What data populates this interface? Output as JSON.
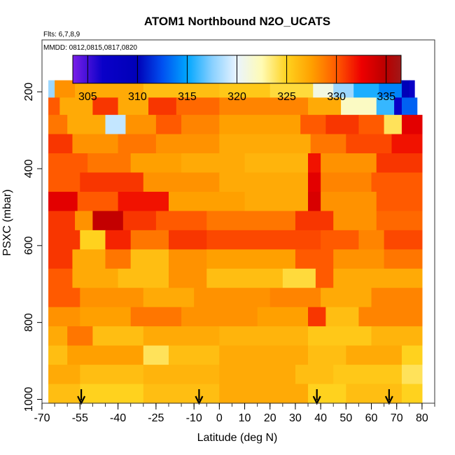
{
  "chart_data": {
    "type": "heatmap",
    "title": "ATOM1 Northbound N2O_UCATS",
    "subtitle_lines": [
      "Flts: 6,7,8,9",
      "MMDD: 0812,0815,0817,0820"
    ],
    "xlabel": "Latitude (deg N)",
    "ylabel": "PSXC (mbar)",
    "xlim": [
      -70,
      85
    ],
    "ylim": [
      1010,
      65
    ],
    "y_reversed": true,
    "x_major_ticks": [
      -70,
      -55,
      -40,
      -25,
      -10,
      0,
      10,
      20,
      30,
      40,
      50,
      60,
      70,
      80
    ],
    "x_tick_labels": [
      "-70",
      "-55",
      "-40",
      "-25",
      "-10",
      "0",
      "10",
      "20",
      "30",
      "40",
      "50",
      "60",
      "70",
      "80"
    ],
    "x_minor_step": 5,
    "y_ticks": [
      200,
      400,
      600,
      800,
      1000
    ],
    "y_tick_labels": [
      "200",
      "400",
      "600",
      "800",
      "1000"
    ],
    "colorbar": {
      "min": 303.5,
      "max": 336.5,
      "tick_values": [
        305,
        310,
        315,
        320,
        325,
        330,
        335
      ],
      "tick_labels": [
        "305",
        "310",
        "315",
        "320",
        "325",
        "330",
        "335"
      ],
      "gradient_stops": [
        {
          "value": 303.5,
          "color": "#7a1fe8"
        },
        {
          "value": 306.5,
          "color": "#0a00c8"
        },
        {
          "value": 310,
          "color": "#0000b8"
        },
        {
          "value": 312.5,
          "color": "#0050f0"
        },
        {
          "value": 315,
          "color": "#00a6ff"
        },
        {
          "value": 317.5,
          "color": "#88d0ff"
        },
        {
          "value": 320,
          "color": "#eaf4ff"
        },
        {
          "value": 322.5,
          "color": "#fffbb4"
        },
        {
          "value": 325,
          "color": "#ffd21e"
        },
        {
          "value": 327.5,
          "color": "#ffa000"
        },
        {
          "value": 330,
          "color": "#ff5a00"
        },
        {
          "value": 332.5,
          "color": "#ee0000"
        },
        {
          "value": 335,
          "color": "#b80000"
        },
        {
          "value": 336.5,
          "color": "#a01818"
        }
      ]
    },
    "curtain": {
      "lat_start": -67.5,
      "lat_end": 80,
      "p_top": 170,
      "p_bottom": 1010
    },
    "layers": [
      {
        "p_top": 170,
        "p_bottom": 215,
        "segments": [
          {
            "lat_to": -65,
            "value": 318
          },
          {
            "lat_to": -57,
            "value": 328
          },
          {
            "lat_to": -30,
            "value": 327
          },
          {
            "lat_to": 0,
            "value": 326
          },
          {
            "lat_to": 20,
            "value": 325.5
          },
          {
            "lat_to": 37,
            "value": 324.5
          },
          {
            "lat_to": 45,
            "value": 321
          },
          {
            "lat_to": 53,
            "value": 318
          },
          {
            "lat_to": 63,
            "value": 315.5
          },
          {
            "lat_to": 72,
            "value": 314
          },
          {
            "lat_to": 75,
            "value": 310
          },
          {
            "lat_to": 77,
            "value": 307
          }
        ]
      },
      {
        "p_top": 215,
        "p_bottom": 260,
        "segments": [
          {
            "lat_to": -63,
            "value": 330
          },
          {
            "lat_to": -50,
            "value": 327
          },
          {
            "lat_to": -40,
            "value": 331
          },
          {
            "lat_to": -28,
            "value": 327
          },
          {
            "lat_to": -17,
            "value": 331
          },
          {
            "lat_to": 0,
            "value": 329.5
          },
          {
            "lat_to": 35,
            "value": 328.5
          },
          {
            "lat_to": 48,
            "value": 327
          },
          {
            "lat_to": 62,
            "value": 322
          },
          {
            "lat_to": 69,
            "value": 316
          },
          {
            "lat_to": 72,
            "value": 307
          },
          {
            "lat_to": 78,
            "value": 313
          }
        ]
      },
      {
        "p_top": 260,
        "p_bottom": 310,
        "segments": [
          {
            "lat_to": -60,
            "value": 329
          },
          {
            "lat_to": -45,
            "value": 327
          },
          {
            "lat_to": -37,
            "value": 319
          },
          {
            "lat_to": -25,
            "value": 328
          },
          {
            "lat_to": -15,
            "value": 330
          },
          {
            "lat_to": 0,
            "value": 328.5
          },
          {
            "lat_to": 32,
            "value": 327.5
          },
          {
            "lat_to": 42,
            "value": 330
          },
          {
            "lat_to": 55,
            "value": 331
          },
          {
            "lat_to": 65,
            "value": 330
          },
          {
            "lat_to": 72,
            "value": 324
          },
          {
            "lat_to": 80,
            "value": 333
          }
        ]
      },
      {
        "p_top": 310,
        "p_bottom": 360,
        "segments": [
          {
            "lat_to": -58,
            "value": 331
          },
          {
            "lat_to": -40,
            "value": 328
          },
          {
            "lat_to": -25,
            "value": 329
          },
          {
            "lat_to": 0,
            "value": 328
          },
          {
            "lat_to": 36,
            "value": 327
          },
          {
            "lat_to": 50,
            "value": 329
          },
          {
            "lat_to": 68,
            "value": 330.5
          },
          {
            "lat_to": 80,
            "value": 332
          }
        ]
      },
      {
        "p_top": 360,
        "p_bottom": 410,
        "segments": [
          {
            "lat_to": -52,
            "value": 330
          },
          {
            "lat_to": -35,
            "value": 329
          },
          {
            "lat_to": -15,
            "value": 327.5
          },
          {
            "lat_to": 10,
            "value": 327
          },
          {
            "lat_to": 35,
            "value": 326.5
          },
          {
            "lat_to": 40,
            "value": 332
          },
          {
            "lat_to": 62,
            "value": 328
          },
          {
            "lat_to": 80,
            "value": 331
          }
        ]
      },
      {
        "p_top": 410,
        "p_bottom": 460,
        "segments": [
          {
            "lat_to": -55,
            "value": 330
          },
          {
            "lat_to": -30,
            "value": 331
          },
          {
            "lat_to": 0,
            "value": 328
          },
          {
            "lat_to": 35,
            "value": 327
          },
          {
            "lat_to": 40,
            "value": 333
          },
          {
            "lat_to": 60,
            "value": 328.5
          },
          {
            "lat_to": 80,
            "value": 330
          }
        ]
      },
      {
        "p_top": 460,
        "p_bottom": 510,
        "segments": [
          {
            "lat_to": -56,
            "value": 333
          },
          {
            "lat_to": -40,
            "value": 330
          },
          {
            "lat_to": -20,
            "value": 332
          },
          {
            "lat_to": 10,
            "value": 327.5
          },
          {
            "lat_to": 35,
            "value": 327
          },
          {
            "lat_to": 40,
            "value": 333.5
          },
          {
            "lat_to": 62,
            "value": 328
          },
          {
            "lat_to": 80,
            "value": 330
          }
        ]
      },
      {
        "p_top": 510,
        "p_bottom": 560,
        "segments": [
          {
            "lat_to": -57,
            "value": 331
          },
          {
            "lat_to": -50,
            "value": 328
          },
          {
            "lat_to": -38,
            "value": 334.5
          },
          {
            "lat_to": -25,
            "value": 331
          },
          {
            "lat_to": -5,
            "value": 330
          },
          {
            "lat_to": 30,
            "value": 329
          },
          {
            "lat_to": 45,
            "value": 331
          },
          {
            "lat_to": 62,
            "value": 328
          },
          {
            "lat_to": 80,
            "value": 329.5
          }
        ]
      },
      {
        "p_top": 560,
        "p_bottom": 610,
        "segments": [
          {
            "lat_to": -55,
            "value": 331
          },
          {
            "lat_to": -45,
            "value": 325
          },
          {
            "lat_to": -35,
            "value": 331.5
          },
          {
            "lat_to": -20,
            "value": 329
          },
          {
            "lat_to": -5,
            "value": 331
          },
          {
            "lat_to": 40,
            "value": 330.5
          },
          {
            "lat_to": 55,
            "value": 330
          },
          {
            "lat_to": 65,
            "value": 328.5
          },
          {
            "lat_to": 80,
            "value": 330.5
          }
        ]
      },
      {
        "p_top": 610,
        "p_bottom": 660,
        "segments": [
          {
            "lat_to": -58,
            "value": 331
          },
          {
            "lat_to": -45,
            "value": 327
          },
          {
            "lat_to": -35,
            "value": 329
          },
          {
            "lat_to": -20,
            "value": 326
          },
          {
            "lat_to": -5,
            "value": 328
          },
          {
            "lat_to": 30,
            "value": 327.5
          },
          {
            "lat_to": 45,
            "value": 330
          },
          {
            "lat_to": 65,
            "value": 328
          },
          {
            "lat_to": 80,
            "value": 329
          }
        ]
      },
      {
        "p_top": 660,
        "p_bottom": 710,
        "segments": [
          {
            "lat_to": -58,
            "value": 330
          },
          {
            "lat_to": -40,
            "value": 327
          },
          {
            "lat_to": -20,
            "value": 326
          },
          {
            "lat_to": -5,
            "value": 328
          },
          {
            "lat_to": 25,
            "value": 326
          },
          {
            "lat_to": 38,
            "value": 324.5
          },
          {
            "lat_to": 45,
            "value": 330
          },
          {
            "lat_to": 80,
            "value": 327
          }
        ]
      },
      {
        "p_top": 710,
        "p_bottom": 760,
        "segments": [
          {
            "lat_to": -55,
            "value": 330
          },
          {
            "lat_to": -30,
            "value": 328
          },
          {
            "lat_to": -10,
            "value": 327
          },
          {
            "lat_to": 20,
            "value": 328
          },
          {
            "lat_to": 40,
            "value": 328.5
          },
          {
            "lat_to": 60,
            "value": 327
          },
          {
            "lat_to": 80,
            "value": 328.5
          }
        ]
      },
      {
        "p_top": 760,
        "p_bottom": 810,
        "segments": [
          {
            "lat_to": -55,
            "value": 328
          },
          {
            "lat_to": -35,
            "value": 327.5
          },
          {
            "lat_to": -15,
            "value": 329
          },
          {
            "lat_to": 15,
            "value": 328
          },
          {
            "lat_to": 35,
            "value": 327.5
          },
          {
            "lat_to": 42,
            "value": 331
          },
          {
            "lat_to": 55,
            "value": 326
          },
          {
            "lat_to": 80,
            "value": 328.5
          }
        ]
      },
      {
        "p_top": 810,
        "p_bottom": 860,
        "segments": [
          {
            "lat_to": -60,
            "value": 327
          },
          {
            "lat_to": -50,
            "value": 329
          },
          {
            "lat_to": -30,
            "value": 326
          },
          {
            "lat_to": 0,
            "value": 327
          },
          {
            "lat_to": 35,
            "value": 326.5
          },
          {
            "lat_to": 60,
            "value": 325.5
          },
          {
            "lat_to": 80,
            "value": 326.5
          }
        ]
      },
      {
        "p_top": 860,
        "p_bottom": 910,
        "segments": [
          {
            "lat_to": -60,
            "value": 326
          },
          {
            "lat_to": -30,
            "value": 327.5
          },
          {
            "lat_to": -20,
            "value": 324
          },
          {
            "lat_to": 0,
            "value": 326
          },
          {
            "lat_to": 35,
            "value": 327
          },
          {
            "lat_to": 50,
            "value": 326
          },
          {
            "lat_to": 72,
            "value": 327
          },
          {
            "lat_to": 80,
            "value": 325
          }
        ]
      },
      {
        "p_top": 910,
        "p_bottom": 960,
        "segments": [
          {
            "lat_to": -55,
            "value": 327
          },
          {
            "lat_to": -30,
            "value": 326
          },
          {
            "lat_to": 0,
            "value": 326.5
          },
          {
            "lat_to": 30,
            "value": 327
          },
          {
            "lat_to": 45,
            "value": 326
          },
          {
            "lat_to": 72,
            "value": 325.5
          },
          {
            "lat_to": 80,
            "value": 324
          }
        ]
      },
      {
        "p_top": 960,
        "p_bottom": 1010,
        "segments": [
          {
            "lat_to": -55,
            "value": 326
          },
          {
            "lat_to": -30,
            "value": 325
          },
          {
            "lat_to": 0,
            "value": 326
          },
          {
            "lat_to": 35,
            "value": 327
          },
          {
            "lat_to": 50,
            "value": 325
          },
          {
            "lat_to": 72,
            "value": 326
          },
          {
            "lat_to": 80,
            "value": 325
          }
        ]
      }
    ],
    "annotations": [
      {
        "type": "arrow",
        "lat": -54.5,
        "label": ""
      },
      {
        "type": "arrow",
        "lat": -8,
        "label": ""
      },
      {
        "type": "arrow",
        "lat": 38.5,
        "label": ""
      },
      {
        "type": "arrow",
        "lat": 67,
        "label": ""
      }
    ],
    "grid": false,
    "legend": "colorbar-top-inside"
  }
}
